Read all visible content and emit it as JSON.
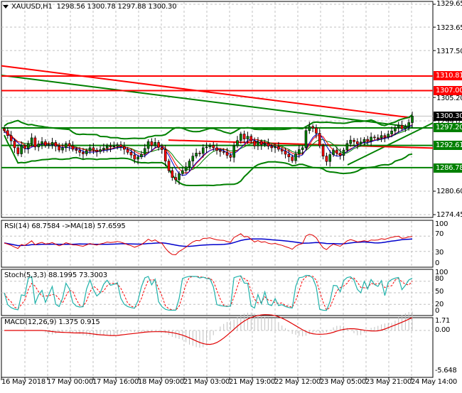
{
  "header": {
    "symbol_label": "XAUUSD,H1",
    "ohlc_label": "1298.56 1300.78 1297.88 1300.30",
    "dropdown_icon": "triangle-down-icon"
  },
  "colors": {
    "bull_candle": "#008000",
    "bear_candle": "#ff0000",
    "resistance": "#ff0000",
    "support": "#008000",
    "bollinger": "#008000",
    "ma_red": "#ff0000",
    "ma_blue": "#0000cc",
    "ma_green": "#008000",
    "rsi_line": "#e00000",
    "rsi_ma": "#0000cc",
    "stoch_main": "#20b2aa",
    "stoch_signal": "#ff0000",
    "macd_signal": "#e00000",
    "macd_hist": "#c0c0c0",
    "grid": "#c0c0c0",
    "current_price_tag": "#000000"
  },
  "price_axis": {
    "ticks": [
      "1329.65",
      "1323.65",
      "1317.50",
      "1305.20",
      "1299.05",
      "1280.60",
      "1274.45"
    ],
    "tags": [
      {
        "label": "1310.81",
        "color": "#ff0000",
        "type": "resistance"
      },
      {
        "label": "1307.00",
        "color": "#ff0000",
        "type": "resistance"
      },
      {
        "label": "1300.30",
        "color": "#000000",
        "type": "current-price"
      },
      {
        "label": "1297.20",
        "color": "#008000",
        "type": "support"
      },
      {
        "label": "1292.61",
        "color": "#008000",
        "type": "support"
      },
      {
        "label": "1286.78",
        "color": "#008000",
        "type": "support"
      }
    ]
  },
  "indicators": {
    "rsi": {
      "label": "RSI(14) 68.7584  ->MA(18) 57.6595",
      "ticks": [
        "100",
        "70",
        "30",
        "0"
      ]
    },
    "stoch": {
      "label": "Stoch(5,3,3) 88.1995 73.3003",
      "ticks": [
        "100",
        "80",
        "50",
        "20",
        "0"
      ]
    },
    "macd": {
      "label": "MACD(12,26,9) 1.375 0.915",
      "ticks": [
        "1.71",
        "0.00",
        "-5.648"
      ]
    }
  },
  "time_axis": {
    "labels": [
      "16 May 2018",
      "17 May 00:00",
      "17 May 16:00",
      "18 May 09:00",
      "21 May 03:00",
      "21 May 19:00",
      "22 May 12:00",
      "23 May 05:00",
      "23 May 21:00",
      "24 May 14:00"
    ]
  },
  "chart_data": [
    {
      "type": "candlestick",
      "title": "XAUUSD,H1",
      "ohlc_last": {
        "open": 1298.56,
        "high": 1300.78,
        "low": 1297.88,
        "close": 1300.3
      },
      "ylim": [
        1274.45,
        1329.65
      ],
      "y_ticks": [
        1329.65,
        1323.65,
        1317.5,
        1305.2,
        1299.05,
        1280.6,
        1274.45
      ],
      "x_labels": [
        "16 May 2018",
        "17 May 00:00",
        "17 May 16:00",
        "18 May 09:00",
        "21 May 03:00",
        "21 May 19:00",
        "22 May 12:00",
        "23 May 05:00",
        "23 May 21:00",
        "24 May 14:00"
      ],
      "grid": true,
      "horizontal_levels": [
        {
          "value": 1310.81,
          "color": "red",
          "kind": "resistance"
        },
        {
          "value": 1307.0,
          "color": "red",
          "kind": "resistance"
        },
        {
          "value": 1297.2,
          "color": "green",
          "kind": "support"
        },
        {
          "value": 1292.61,
          "color": "green",
          "kind": "support"
        },
        {
          "value": 1286.78,
          "color": "green",
          "kind": "support"
        }
      ],
      "trendlines": [
        {
          "color": "red",
          "from": [
            0,
            1313.5
          ],
          "to": [
            575,
            1299.9
          ],
          "desc": "descending resistance trendline"
        },
        {
          "color": "green",
          "from": [
            0,
            1311.0
          ],
          "to": [
            575,
            1297.5
          ],
          "desc": "descending channel line"
        },
        {
          "color": "green",
          "from": [
            487,
            1287.5
          ],
          "to": [
            607,
            1298.5
          ],
          "desc": "ascending support trendline"
        },
        {
          "color": "red",
          "from": [
            235,
            1294.0
          ],
          "to": [
            607,
            1291.9
          ],
          "desc": "red level line"
        }
      ],
      "closes_approx": [
        1296.5,
        1295.2,
        1293.8,
        1292.0,
        1290.4,
        1292.5,
        1291.8,
        1293.0,
        1294.6,
        1292.2,
        1293.0,
        1293.6,
        1292.6,
        1292.8,
        1293.4,
        1292.4,
        1291.4,
        1292.0,
        1293.1,
        1292.5,
        1291.6,
        1291.3,
        1290.8,
        1290.4,
        1291.2,
        1292.0,
        1291.4,
        1291.0,
        1291.5,
        1291.9,
        1292.5,
        1292.2,
        1292.4,
        1292.8,
        1292.3,
        1291.6,
        1290.8,
        1290.1,
        1289.0,
        1289.6,
        1290.3,
        1291.8,
        1293.6,
        1292.6,
        1293.4,
        1292.1,
        1291.5,
        1288.5,
        1286.0,
        1284.2,
        1283.6,
        1285.2,
        1286.0,
        1287.0,
        1288.5,
        1289.8,
        1290.6,
        1290.5,
        1292.0,
        1292.2,
        1292.6,
        1292.0,
        1291.3,
        1291.0,
        1290.8,
        1290.0,
        1289.5,
        1292.5,
        1293.9,
        1295.6,
        1294.3,
        1295.0,
        1293.8,
        1292.5,
        1293.6,
        1292.8,
        1293.2,
        1292.4,
        1292.0,
        1292.3,
        1291.6,
        1291.1,
        1290.3,
        1289.6,
        1288.6,
        1290.4,
        1291.5,
        1292.0,
        1296.5,
        1297.6,
        1297.2,
        1295.8,
        1292.5,
        1289.8,
        1288.4,
        1290.2,
        1291.4,
        1290.6,
        1290.0,
        1291.4,
        1293.1,
        1294.0,
        1293.6,
        1293.0,
        1293.5,
        1294.2,
        1293.8,
        1294.8,
        1294.6,
        1294.6,
        1295.2,
        1294.8,
        1295.6,
        1296.4,
        1297.3,
        1297.9,
        1297.0,
        1297.6,
        1298.6,
        1300.3
      ]
    },
    {
      "type": "line",
      "title": "RSI(14) 68.7584 ->MA(18) 57.6595",
      "ylim": [
        0,
        100
      ],
      "y_ticks": [
        100,
        70,
        30,
        0
      ],
      "series": [
        {
          "name": "RSI(14)",
          "last": 68.7584
        },
        {
          "name": "MA(18)",
          "last": 57.6595
        }
      ]
    },
    {
      "type": "line",
      "title": "Stoch(5,3,3) 88.1995 73.3003",
      "ylim": [
        0,
        100
      ],
      "y_ticks": [
        100,
        80,
        50,
        20,
        0
      ],
      "series": [
        {
          "name": "%K",
          "last": 88.1995
        },
        {
          "name": "%D",
          "last": 73.3003
        }
      ]
    },
    {
      "type": "bar+line",
      "title": "MACD(12,26,9) 1.375 0.915",
      "ylim": [
        -5.648,
        1.71
      ],
      "y_ticks": [
        1.71,
        0.0,
        -5.648
      ],
      "series": [
        {
          "name": "MACD histogram",
          "last": 1.375
        },
        {
          "name": "Signal",
          "last": 0.915
        }
      ]
    }
  ]
}
